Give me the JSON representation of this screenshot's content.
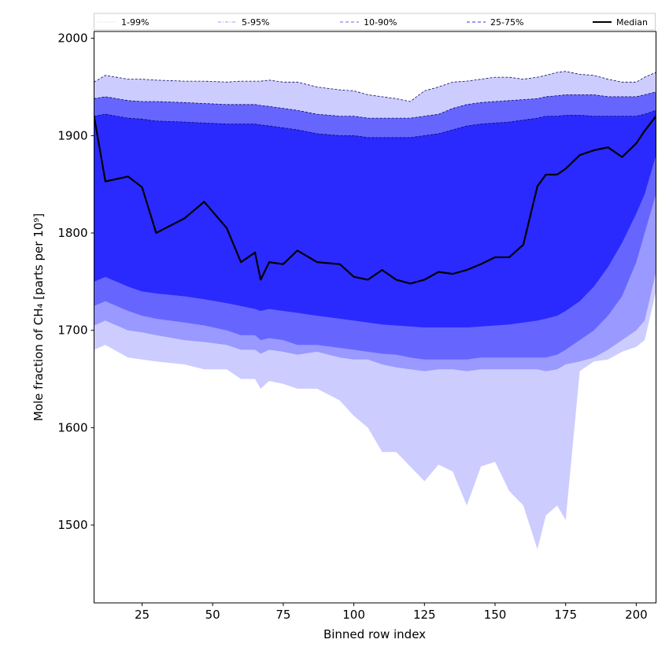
{
  "chart_data": {
    "type": "area",
    "xlabel": "Binned row index",
    "ylabel": "Mole fraction of CH₄ [parts per 10⁹]",
    "xlim": [
      8,
      207
    ],
    "ylim": [
      1420,
      2007
    ],
    "xticks": [
      25,
      50,
      75,
      100,
      125,
      150,
      175,
      200
    ],
    "yticks": [
      1500,
      1600,
      1700,
      1800,
      1900,
      2000
    ],
    "legend_position": "top (horizontal strip)",
    "legend": [
      {
        "label": "1-99%",
        "color": "#ccccff",
        "style": "dotted"
      },
      {
        "label": "5-95%",
        "color": "#9999ff",
        "style": "dash-dot"
      },
      {
        "label": "10-90%",
        "color": "#6666ff",
        "style": "dashed"
      },
      {
        "label": "25-75%",
        "color": "#3333ff",
        "style": "dashed"
      },
      {
        "label": "Median",
        "color": "#000000",
        "style": "solid"
      }
    ],
    "x": [
      8,
      12,
      20,
      25,
      30,
      40,
      47,
      55,
      60,
      65,
      67,
      70,
      75,
      80,
      87,
      95,
      100,
      105,
      110,
      115,
      120,
      125,
      130,
      135,
      140,
      145,
      150,
      155,
      160,
      165,
      168,
      172,
      175,
      180,
      185,
      190,
      195,
      200,
      203,
      207
    ],
    "series": [
      {
        "name": "1-99%",
        "lower": [
          1680,
          1685,
          1672,
          1670,
          1668,
          1665,
          1660,
          1660,
          1650,
          1650,
          1640,
          1648,
          1645,
          1640,
          1640,
          1628,
          1612,
          1600,
          1575,
          1575,
          1560,
          1545,
          1562,
          1555,
          1520,
          1560,
          1565,
          1535,
          1520,
          1475,
          1510,
          1520,
          1505,
          1658,
          1668,
          1670,
          1678,
          1683,
          1690,
          1740
        ],
        "upper": [
          1955,
          1962,
          1958,
          1958,
          1957,
          1956,
          1956,
          1955,
          1956,
          1956,
          1956,
          1957,
          1955,
          1955,
          1950,
          1947,
          1946,
          1942,
          1940,
          1938,
          1935,
          1946,
          1950,
          1955,
          1956,
          1958,
          1960,
          1960,
          1958,
          1960,
          1962,
          1965,
          1966,
          1963,
          1962,
          1958,
          1955,
          1955,
          1960,
          1965
        ]
      },
      {
        "name": "5-95%",
        "lower": [
          1705,
          1710,
          1700,
          1698,
          1695,
          1690,
          1688,
          1685,
          1680,
          1680,
          1676,
          1680,
          1678,
          1675,
          1678,
          1672,
          1670,
          1670,
          1665,
          1662,
          1660,
          1658,
          1660,
          1660,
          1658,
          1660,
          1660,
          1660,
          1660,
          1660,
          1658,
          1660,
          1665,
          1668,
          1672,
          1680,
          1690,
          1700,
          1710,
          1760
        ]
      },
      {
        "name": "10-90%",
        "lower": [
          1725,
          1730,
          1720,
          1715,
          1712,
          1708,
          1705,
          1700,
          1695,
          1695,
          1690,
          1692,
          1690,
          1685,
          1685,
          1682,
          1680,
          1678,
          1676,
          1675,
          1672,
          1670,
          1670,
          1670,
          1670,
          1672,
          1672,
          1672,
          1672,
          1672,
          1672,
          1675,
          1680,
          1690,
          1700,
          1715,
          1735,
          1770,
          1800,
          1840
        ],
        "upper": [
          1938,
          1940,
          1936,
          1935,
          1935,
          1934,
          1933,
          1932,
          1932,
          1932,
          1931,
          1930,
          1928,
          1926,
          1922,
          1920,
          1920,
          1918,
          1918,
          1918,
          1918,
          1920,
          1922,
          1928,
          1932,
          1934,
          1935,
          1936,
          1937,
          1938,
          1940,
          1941,
          1942,
          1942,
          1942,
          1940,
          1940,
          1940,
          1942,
          1945
        ]
      },
      {
        "name": "25-75%",
        "lower": [
          1750,
          1755,
          1745,
          1740,
          1738,
          1735,
          1732,
          1728,
          1725,
          1722,
          1720,
          1722,
          1720,
          1718,
          1715,
          1712,
          1710,
          1708,
          1706,
          1705,
          1704,
          1703,
          1703,
          1703,
          1703,
          1704,
          1705,
          1706,
          1708,
          1710,
          1712,
          1715,
          1720,
          1730,
          1745,
          1765,
          1790,
          1820,
          1840,
          1880
        ],
        "upper": [
          1920,
          1922,
          1918,
          1917,
          1915,
          1914,
          1913,
          1912,
          1912,
          1912,
          1911,
          1910,
          1908,
          1906,
          1902,
          1900,
          1900,
          1898,
          1898,
          1898,
          1898,
          1900,
          1902,
          1906,
          1910,
          1912,
          1913,
          1914,
          1916,
          1918,
          1920,
          1920,
          1921,
          1921,
          1920,
          1920,
          1920,
          1920,
          1922,
          1926
        ]
      },
      {
        "name": "Median",
        "values": [
          1920,
          1853,
          1858,
          1847,
          1800,
          1815,
          1832,
          1805,
          1770,
          1780,
          1752,
          1770,
          1768,
          1782,
          1770,
          1768,
          1755,
          1752,
          1762,
          1752,
          1748,
          1752,
          1760,
          1758,
          1762,
          1768,
          1775,
          1775,
          1788,
          1848,
          1860,
          1860,
          1866,
          1880,
          1885,
          1888,
          1878,
          1892,
          1905,
          1920
        ]
      }
    ]
  }
}
